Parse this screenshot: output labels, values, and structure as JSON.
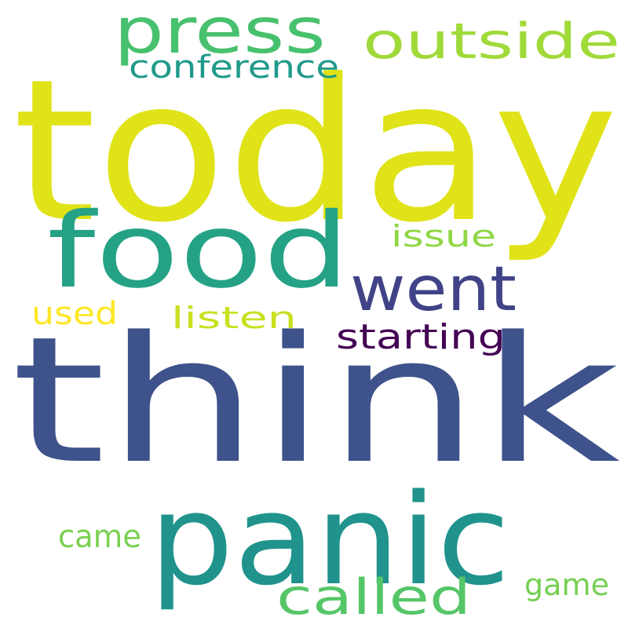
{
  "words": [
    {
      "text": "today",
      "color": "#dfe318"
    },
    {
      "text": "think",
      "color": "#3e528b"
    },
    {
      "text": "food",
      "color": "#25a286"
    },
    {
      "text": "panic",
      "color": "#20938c"
    },
    {
      "text": "press",
      "color": "#48c16e"
    },
    {
      "text": "outside",
      "color": "#a0da39"
    },
    {
      "text": "went",
      "color": "#404387"
    },
    {
      "text": "called",
      "color": "#55c668"
    },
    {
      "text": "conference",
      "color": "#1f9a8a"
    },
    {
      "text": "issue",
      "color": "#8fd744"
    },
    {
      "text": "listen",
      "color": "#c8e020"
    },
    {
      "text": "starting",
      "color": "#440154"
    },
    {
      "text": "used",
      "color": "#fde725"
    },
    {
      "text": "came",
      "color": "#7ad151"
    },
    {
      "text": "game",
      "color": "#75d054"
    }
  ]
}
